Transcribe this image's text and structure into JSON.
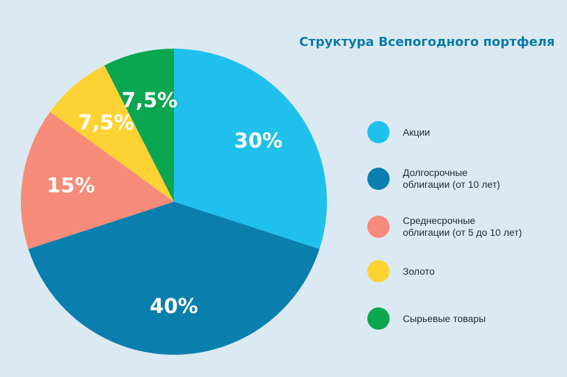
{
  "chart_data": {
    "type": "pie",
    "title": "Структура Всепогодного портфеля",
    "start": "12 o'clock",
    "direction": "clockwise",
    "slices": [
      {
        "name": "Акции",
        "legend": "Акции",
        "value": 30,
        "label": "30%",
        "color": "#20c0ec"
      },
      {
        "name": "Долгосрочные облигации (от 10 лет)",
        "legend": "Долгосрочные\nоблигации (от 10 лет)",
        "value": 40,
        "label": "40%",
        "color": "#0a7fad"
      },
      {
        "name": "Среднесрочные облигации (от 5 до 10 лет)",
        "legend": "Среднесрочные\nоблигации (от 5 до 10 лет)",
        "value": 15,
        "label": "15%",
        "color": "#f78b79"
      },
      {
        "name": "Золото",
        "legend": "Золото",
        "value": 7.5,
        "label": "7,5%",
        "color": "#fdd233"
      },
      {
        "name": "Сырьевые товары",
        "legend": "Сырьевые товары",
        "value": 7.5,
        "label": "7,5%",
        "color": "#0aa650"
      }
    ],
    "legend_position": "right"
  }
}
